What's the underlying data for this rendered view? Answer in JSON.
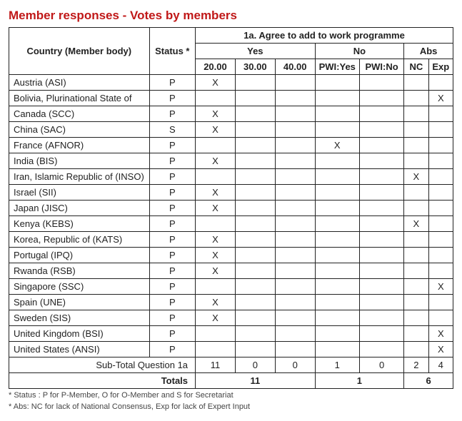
{
  "title": "Member responses - Votes by members",
  "headers": {
    "country": "Country (Member body)",
    "status": "Status *",
    "question": "1a. Agree to add to work programme",
    "yes": "Yes",
    "no": "No",
    "abs": "Abs",
    "col_2000": "20.00",
    "col_3000": "30.00",
    "col_4000": "40.00",
    "col_pwiyes": "PWI:Yes",
    "col_pwino": "PWI:No",
    "col_nc": "NC",
    "col_exp": "Exp"
  },
  "rows": [
    {
      "country": "Austria (ASI)",
      "status": "P",
      "c20": "X",
      "c30": "",
      "c40": "",
      "pwiyes": "",
      "pwino": "",
      "nc": "",
      "exp": ""
    },
    {
      "country": "Bolivia, Plurinational State of",
      "status": "P",
      "c20": "",
      "c30": "",
      "c40": "",
      "pwiyes": "",
      "pwino": "",
      "nc": "",
      "exp": "X"
    },
    {
      "country": "Canada (SCC)",
      "status": "P",
      "c20": "X",
      "c30": "",
      "c40": "",
      "pwiyes": "",
      "pwino": "",
      "nc": "",
      "exp": ""
    },
    {
      "country": "China (SAC)",
      "status": "S",
      "c20": "X",
      "c30": "",
      "c40": "",
      "pwiyes": "",
      "pwino": "",
      "nc": "",
      "exp": ""
    },
    {
      "country": "France (AFNOR)",
      "status": "P",
      "c20": "",
      "c30": "",
      "c40": "",
      "pwiyes": "X",
      "pwino": "",
      "nc": "",
      "exp": ""
    },
    {
      "country": "India (BIS)",
      "status": "P",
      "c20": "X",
      "c30": "",
      "c40": "",
      "pwiyes": "",
      "pwino": "",
      "nc": "",
      "exp": ""
    },
    {
      "country": "Iran, Islamic Republic of (INSO)",
      "status": "P",
      "c20": "",
      "c30": "",
      "c40": "",
      "pwiyes": "",
      "pwino": "",
      "nc": "X",
      "exp": ""
    },
    {
      "country": "Israel (SII)",
      "status": "P",
      "c20": "X",
      "c30": "",
      "c40": "",
      "pwiyes": "",
      "pwino": "",
      "nc": "",
      "exp": ""
    },
    {
      "country": "Japan (JISC)",
      "status": "P",
      "c20": "X",
      "c30": "",
      "c40": "",
      "pwiyes": "",
      "pwino": "",
      "nc": "",
      "exp": ""
    },
    {
      "country": "Kenya (KEBS)",
      "status": "P",
      "c20": "",
      "c30": "",
      "c40": "",
      "pwiyes": "",
      "pwino": "",
      "nc": "X",
      "exp": ""
    },
    {
      "country": "Korea, Republic of (KATS)",
      "status": "P",
      "c20": "X",
      "c30": "",
      "c40": "",
      "pwiyes": "",
      "pwino": "",
      "nc": "",
      "exp": ""
    },
    {
      "country": "Portugal (IPQ)",
      "status": "P",
      "c20": "X",
      "c30": "",
      "c40": "",
      "pwiyes": "",
      "pwino": "",
      "nc": "",
      "exp": ""
    },
    {
      "country": "Rwanda (RSB)",
      "status": "P",
      "c20": "X",
      "c30": "",
      "c40": "",
      "pwiyes": "",
      "pwino": "",
      "nc": "",
      "exp": ""
    },
    {
      "country": "Singapore (SSC)",
      "status": "P",
      "c20": "",
      "c30": "",
      "c40": "",
      "pwiyes": "",
      "pwino": "",
      "nc": "",
      "exp": "X"
    },
    {
      "country": "Spain (UNE)",
      "status": "P",
      "c20": "X",
      "c30": "",
      "c40": "",
      "pwiyes": "",
      "pwino": "",
      "nc": "",
      "exp": ""
    },
    {
      "country": "Sweden (SIS)",
      "status": "P",
      "c20": "X",
      "c30": "",
      "c40": "",
      "pwiyes": "",
      "pwino": "",
      "nc": "",
      "exp": ""
    },
    {
      "country": "United Kingdom (BSI)",
      "status": "P",
      "c20": "",
      "c30": "",
      "c40": "",
      "pwiyes": "",
      "pwino": "",
      "nc": "",
      "exp": "X"
    },
    {
      "country": "United States (ANSI)",
      "status": "P",
      "c20": "",
      "c30": "",
      "c40": "",
      "pwiyes": "",
      "pwino": "",
      "nc": "",
      "exp": "X"
    }
  ],
  "subtotal": {
    "label": "Sub-Total Question 1a",
    "c20": "11",
    "c30": "0",
    "c40": "0",
    "pwiyes": "1",
    "pwino": "0",
    "nc": "2",
    "exp": "4"
  },
  "totals": {
    "label": "Totals",
    "yes": "11",
    "no": "1",
    "abs": "6"
  },
  "footnotes": {
    "f1": "* Status : P for P-Member, O for O-Member and S for Secretariat",
    "f2": "* Abs: NC for lack of National Consensus, Exp for lack of Expert Input"
  }
}
